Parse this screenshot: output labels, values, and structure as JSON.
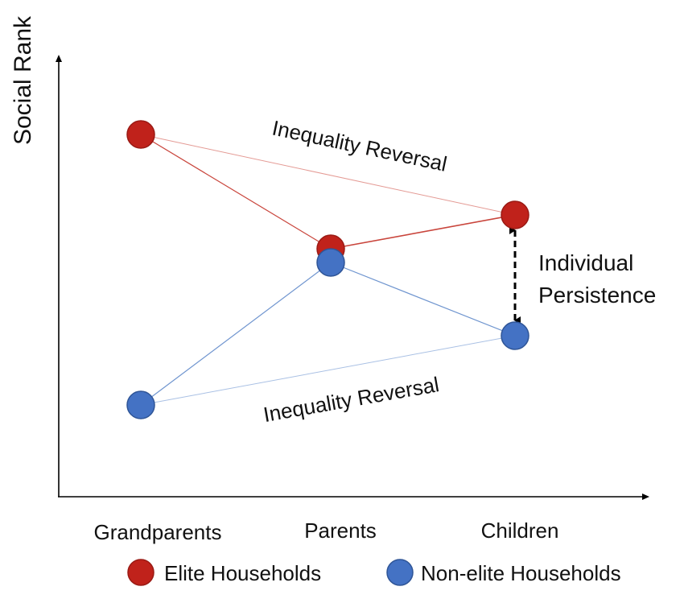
{
  "axis": {
    "y_label": "Social Rank"
  },
  "generations": [
    "Grandparents",
    "Parents",
    "Children"
  ],
  "annotations": {
    "upper_reversal": "Inequality Reversal",
    "lower_reversal": "Inequality Reversal",
    "persistence_line1": "Individual",
    "persistence_line2": "Persistence"
  },
  "legend": {
    "elite": "Elite Households",
    "nonelite": "Non-elite Households"
  },
  "colors": {
    "elite": "#c0221b",
    "elite_stroke": "#9a1a14",
    "nonelite": "#4472c4",
    "nonelite_stroke": "#2f5597",
    "elite_line": "#c9453c",
    "nonelite_line": "#6f95cf"
  }
}
